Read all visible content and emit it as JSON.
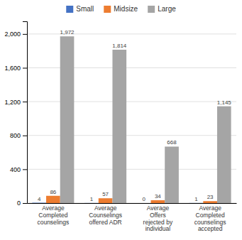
{
  "chart_data": {
    "type": "bar",
    "categories": [
      "Average\nCompleted\ncounselings",
      "Average\nCounselings\noffered ADR",
      "Average\nOffers\nrejected by\nindividual",
      "Average\nCompleted\ncounselings\naccepted"
    ],
    "series": [
      {
        "name": "Small",
        "color": "#4472c4",
        "values": [
          4,
          1,
          0,
          1
        ]
      },
      {
        "name": "Midsize",
        "color": "#ed7d31",
        "values": [
          86,
          57,
          34,
          23
        ]
      },
      {
        "name": "Large",
        "color": "#a5a5a5",
        "values": [
          1972,
          1814,
          668,
          1145
        ],
        "value_labels": [
          "1,972",
          "1,814",
          "668",
          "1,145"
        ]
      }
    ],
    "ylim": [
      0,
      2150
    ],
    "yticks": [
      0,
      400,
      800,
      {
        "value": 1200,
        "label": "1,200"
      },
      {
        "value": 1600,
        "label": "1,600"
      },
      {
        "value": 2000,
        "label": "2,000"
      }
    ],
    "grid": true,
    "legend": "top",
    "data_labels": true
  }
}
